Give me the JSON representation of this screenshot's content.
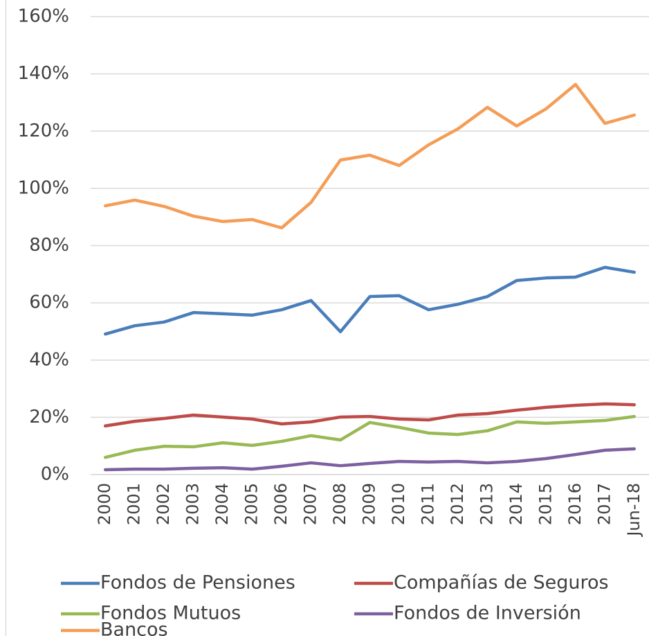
{
  "chart_data": {
    "type": "line",
    "categories": [
      "2000",
      "2001",
      "2002",
      "2003",
      "2004",
      "2005",
      "2006",
      "2007",
      "2008",
      "2009",
      "2010",
      "2011",
      "2012",
      "2013",
      "2014",
      "2015",
      "2016",
      "2017",
      "Jun-18"
    ],
    "series": [
      {
        "name": "Fondos de Pensiones",
        "color": "#4a7ebb",
        "values": [
          49.1,
          52,
          53.3,
          56.6,
          56.2,
          55.7,
          57.6,
          60.8,
          49.9,
          62.2,
          62.5,
          57.6,
          59.5,
          62.2,
          67.8,
          68.7,
          69,
          72.4,
          70.7
        ]
      },
      {
        "name": "Compañías de Seguros",
        "color": "#be4b48",
        "values": [
          17,
          18.6,
          19.6,
          20.8,
          20.1,
          19.4,
          17.7,
          18.4,
          20.1,
          20.3,
          19.4,
          19.1,
          20.8,
          21.3,
          22.5,
          23.5,
          24.2,
          24.7,
          24.4
        ]
      },
      {
        "name": "Fondos Mutuos",
        "color": "#98b954",
        "values": [
          6,
          8.5,
          9.9,
          9.7,
          11.1,
          10.2,
          11.6,
          13.6,
          12.1,
          18.2,
          16.5,
          14.5,
          14,
          15.3,
          18.4,
          17.9,
          18.4,
          18.9,
          20.3
        ]
      },
      {
        "name": "Fondos de Inversión",
        "color": "#7d60a0",
        "values": [
          1.7,
          1.9,
          1.9,
          2.2,
          2.4,
          1.9,
          2.9,
          4.1,
          3.1,
          3.9,
          4.6,
          4.4,
          4.6,
          4.1,
          4.6,
          5.6,
          7,
          8.5,
          9
        ]
      },
      {
        "name": "Bancos",
        "color": "#f59d56",
        "values": [
          93.9,
          95.9,
          93.7,
          90.3,
          88.4,
          89.1,
          86.2,
          95.1,
          109.9,
          111.6,
          108,
          115.2,
          120.8,
          128.3,
          121.8,
          127.8,
          136.3,
          122.7,
          125.6
        ]
      }
    ],
    "ylim": [
      0,
      160
    ],
    "yticks": [
      {
        "value": 0,
        "label": "0%"
      },
      {
        "value": 20,
        "label": "20%"
      },
      {
        "value": 40,
        "label": "40%"
      },
      {
        "value": 60,
        "label": "60%"
      },
      {
        "value": 80,
        "label": "80%"
      },
      {
        "value": 100,
        "label": "100%"
      },
      {
        "value": 120,
        "label": "120%"
      },
      {
        "value": 140,
        "label": "140%"
      },
      {
        "value": 160,
        "label": "160%"
      }
    ],
    "grid": true,
    "legend": "bottom"
  }
}
